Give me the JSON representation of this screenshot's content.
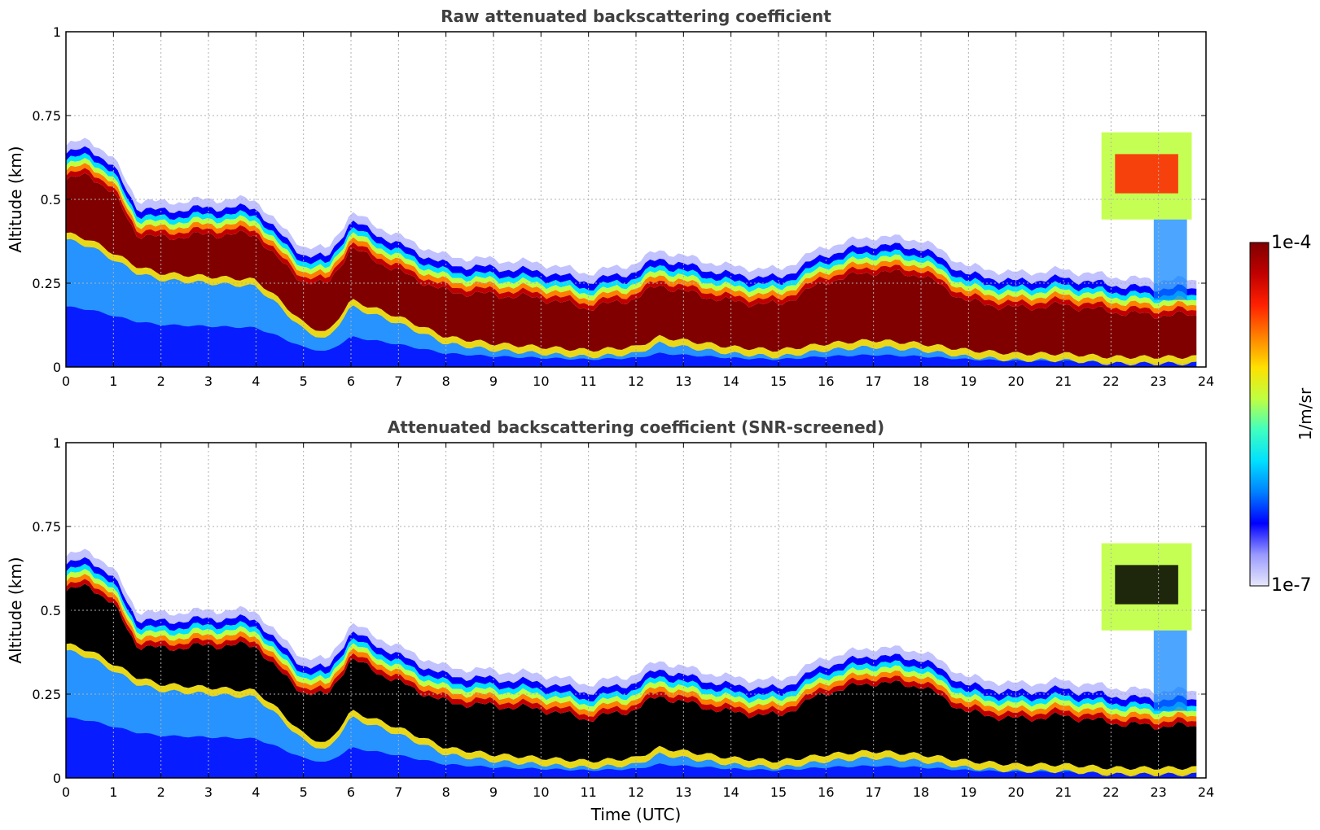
{
  "chart_data": [
    {
      "type": "heatmap",
      "title": "Raw attenuated backscattering coefficient",
      "xlabel": "",
      "ylabel": "Altitude (km)",
      "xlim": [
        0,
        24
      ],
      "ylim": [
        0,
        1
      ],
      "xticks": [
        "0",
        "1",
        "2",
        "3",
        "4",
        "5",
        "6",
        "7",
        "8",
        "9",
        "10",
        "11",
        "12",
        "13",
        "14",
        "15",
        "16",
        "17",
        "18",
        "19",
        "20",
        "21",
        "22",
        "23",
        "24"
      ],
      "yticks": [
        {
          "value": 0,
          "label": "0"
        },
        {
          "value": 0.25,
          "label": "0.25"
        },
        {
          "value": 0.5,
          "label": "0.5"
        },
        {
          "value": 0.75,
          "label": "0.75"
        },
        {
          "value": 1,
          "label": "1"
        }
      ],
      "grid": true,
      "saturated_color": "#800000",
      "layer": {
        "time": [
          0,
          0.5,
          1,
          1.5,
          2,
          3,
          4,
          4.5,
          5,
          5.5,
          6,
          7,
          8,
          9,
          10,
          11,
          12,
          12.5,
          13,
          14,
          15,
          16,
          17,
          18,
          19,
          20,
          21,
          22,
          22.8,
          23.8
        ],
        "top_km": [
          0.6,
          0.62,
          0.56,
          0.44,
          0.43,
          0.44,
          0.44,
          0.36,
          0.3,
          0.29,
          0.4,
          0.33,
          0.27,
          0.26,
          0.25,
          0.22,
          0.25,
          0.29,
          0.27,
          0.24,
          0.23,
          0.3,
          0.33,
          0.32,
          0.24,
          0.22,
          0.23,
          0.21,
          0.2,
          0.2
        ],
        "base_km": [
          0.4,
          0.38,
          0.34,
          0.3,
          0.28,
          0.27,
          0.26,
          0.2,
          0.13,
          0.1,
          0.2,
          0.15,
          0.09,
          0.07,
          0.06,
          0.05,
          0.06,
          0.09,
          0.08,
          0.06,
          0.05,
          0.07,
          0.08,
          0.07,
          0.05,
          0.04,
          0.04,
          0.03,
          0.03,
          0.03
        ]
      },
      "cloud_patch": {
        "time_range": [
          21.8,
          23.7
        ],
        "altitude_range_km": [
          0.44,
          0.7
        ]
      }
    },
    {
      "type": "heatmap",
      "title": "Attenuated backscattering coefficient (SNR-screened)",
      "xlabel": "Time (UTC)",
      "ylabel": "Altitude (km)",
      "xlim": [
        0,
        24
      ],
      "ylim": [
        0,
        1
      ],
      "xticks": [
        "0",
        "1",
        "2",
        "3",
        "4",
        "5",
        "6",
        "7",
        "8",
        "9",
        "10",
        "11",
        "12",
        "13",
        "14",
        "15",
        "16",
        "17",
        "18",
        "19",
        "20",
        "21",
        "22",
        "23",
        "24"
      ],
      "yticks": [
        {
          "value": 0,
          "label": "0"
        },
        {
          "value": 0.25,
          "label": "0.25"
        },
        {
          "value": 0.5,
          "label": "0.5"
        },
        {
          "value": 0.75,
          "label": "0.75"
        },
        {
          "value": 1,
          "label": "1"
        }
      ],
      "grid": true,
      "saturated_color": "#000000",
      "layer": {
        "time": [
          0,
          0.5,
          1,
          1.5,
          2,
          3,
          4,
          4.5,
          5,
          5.5,
          6,
          7,
          8,
          9,
          10,
          11,
          12,
          12.5,
          13,
          14,
          15,
          16,
          17,
          18,
          19,
          20,
          21,
          22,
          22.8,
          23.8
        ],
        "top_km": [
          0.6,
          0.62,
          0.56,
          0.44,
          0.43,
          0.44,
          0.44,
          0.36,
          0.3,
          0.29,
          0.4,
          0.33,
          0.27,
          0.26,
          0.25,
          0.22,
          0.25,
          0.29,
          0.27,
          0.24,
          0.23,
          0.3,
          0.33,
          0.32,
          0.24,
          0.22,
          0.23,
          0.21,
          0.2,
          0.2
        ],
        "base_km": [
          0.4,
          0.38,
          0.34,
          0.3,
          0.28,
          0.27,
          0.26,
          0.2,
          0.13,
          0.1,
          0.2,
          0.15,
          0.09,
          0.07,
          0.06,
          0.05,
          0.06,
          0.09,
          0.08,
          0.06,
          0.05,
          0.07,
          0.08,
          0.07,
          0.05,
          0.04,
          0.04,
          0.03,
          0.03,
          0.03
        ]
      },
      "cloud_patch": {
        "time_range": [
          21.8,
          23.7
        ],
        "altitude_range_km": [
          0.44,
          0.7
        ]
      }
    }
  ],
  "colorbar": {
    "max_label": "1e-4",
    "min_label": "1e-7",
    "unit": "1/m/sr",
    "colors": [
      "#e8e8fb",
      "#9999ff",
      "#0000ff",
      "#0080ff",
      "#00e0ff",
      "#40ffc0",
      "#c0ff40",
      "#ffe000",
      "#ff8000",
      "#ff2000",
      "#c00000",
      "#800000"
    ]
  }
}
